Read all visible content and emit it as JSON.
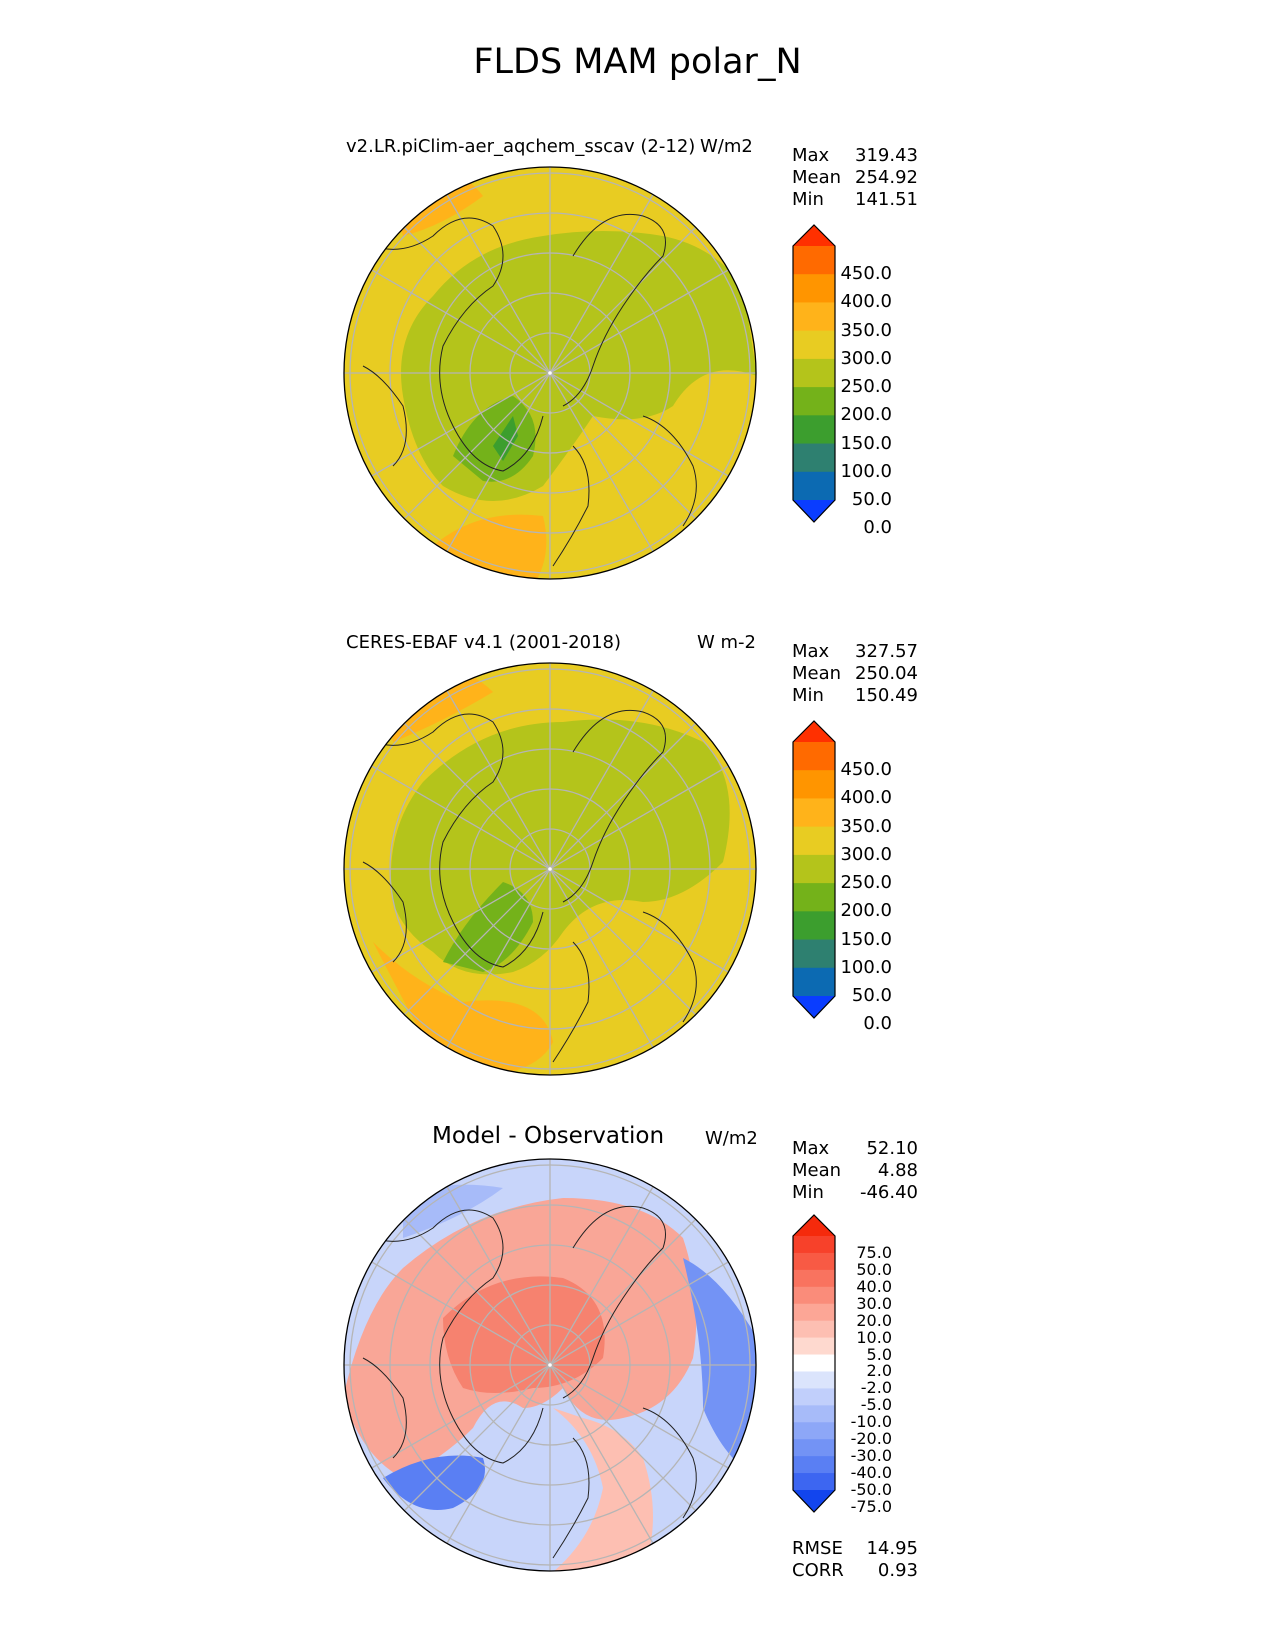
{
  "title": "FLDS MAM polar_N",
  "panels": [
    {
      "title": "v2.LR.piClim-aer_aqchem_sscav (2-12)",
      "units": "W/m2",
      "stats": [
        {
          "label": "Max",
          "value": "319.43"
        },
        {
          "label": "Mean",
          "value": "254.92"
        },
        {
          "label": "Min",
          "value": "141.51"
        }
      ]
    },
    {
      "title": "CERES-EBAF v4.1 (2001-2018)",
      "units": "W m-2",
      "stats": [
        {
          "label": "Max",
          "value": "327.57"
        },
        {
          "label": "Mean",
          "value": "250.04"
        },
        {
          "label": "Min",
          "value": "150.49"
        }
      ]
    },
    {
      "title": "Model - Observation",
      "units": "W/m2",
      "stats": [
        {
          "label": "Max",
          "value": "52.10"
        },
        {
          "label": "Mean",
          "value": "4.88"
        },
        {
          "label": "Min",
          "value": "-46.40"
        }
      ],
      "metrics": [
        {
          "label": "RMSE",
          "value": "14.95"
        },
        {
          "label": "CORR",
          "value": "0.93"
        }
      ]
    }
  ],
  "colorbar_abs": {
    "ticks": [
      "450.0",
      "400.0",
      "350.0",
      "300.0",
      "250.0",
      "200.0",
      "150.0",
      "100.0",
      "50.0",
      "0.0"
    ],
    "colors": [
      "#ff3000",
      "#ff6a00",
      "#ff9500",
      "#ffb31a",
      "#e8cc22",
      "#b4c41b",
      "#74b21a",
      "#3c9e2e",
      "#2e8070",
      "#0c6ab2",
      "#0a3dff"
    ]
  },
  "colorbar_diff": {
    "ticks": [
      "75.0",
      "50.0",
      "40.0",
      "30.0",
      "20.0",
      "10.0",
      "5.0",
      "2.0",
      "-2.0",
      "-5.0",
      "-10.0",
      "-20.0",
      "-30.0",
      "-40.0",
      "-50.0",
      "-75.0"
    ],
    "colors": [
      "#f52a0c",
      "#f7412a",
      "#f85a44",
      "#f9735f",
      "#fa8c7a",
      "#fca696",
      "#fdbfb2",
      "#fed9cf",
      "#ffffff",
      "#dbe4fc",
      "#c1cffb",
      "#a7bbf9",
      "#8da7f7",
      "#7393f5",
      "#5a7ff3",
      "#3d66f1",
      "#1245ee"
    ]
  },
  "colors": {
    "globe_base_abs": "#e8cc22",
    "land_green": "#b4c41b",
    "diff_pos": "#f69c8c",
    "diff_neg": "#9db4f4",
    "grid": "#b5b5b5"
  }
}
